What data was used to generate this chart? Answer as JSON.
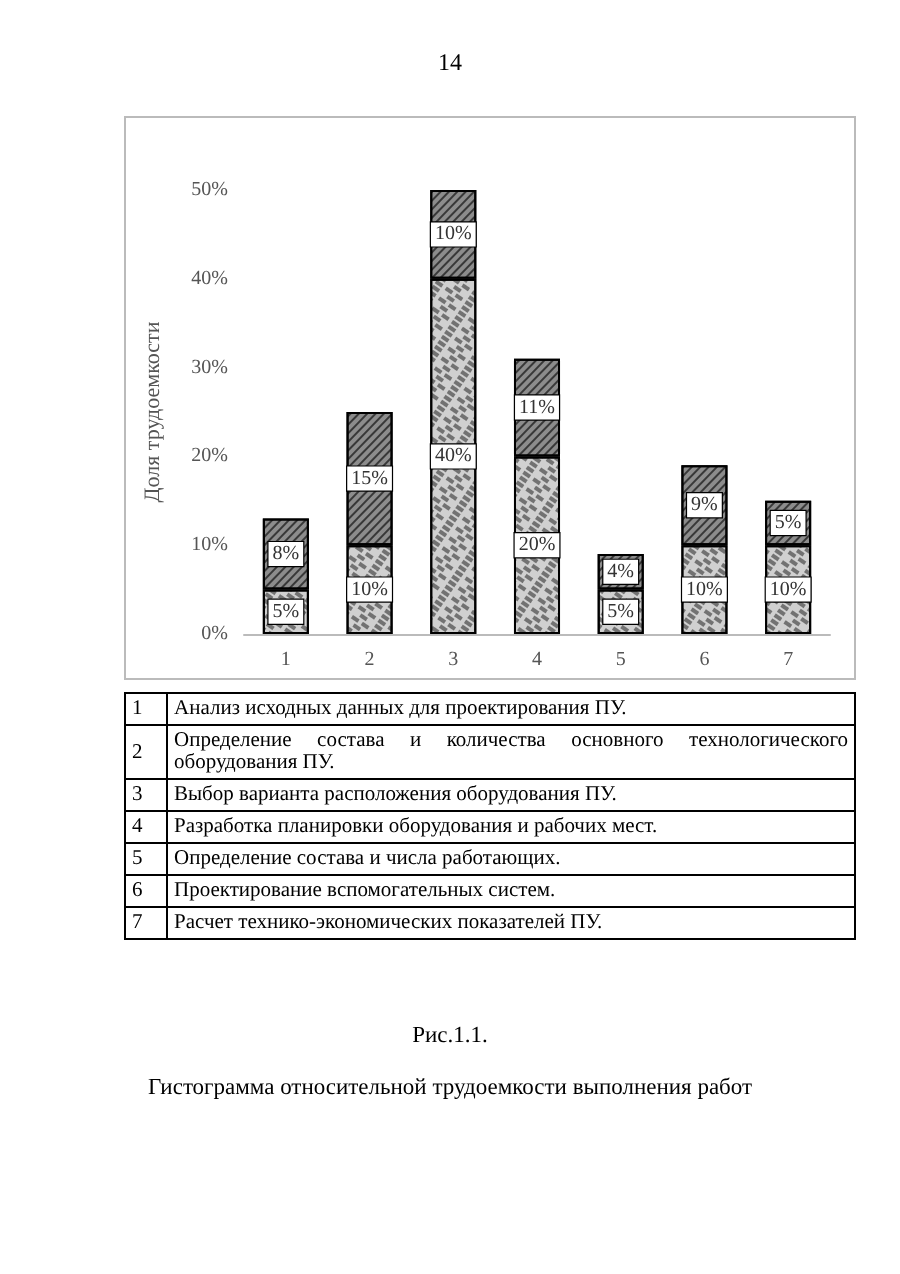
{
  "chart_data": {
    "type": "bar",
    "stacked": true,
    "ylabel": "Доля трудоемкости",
    "categories": [
      "1",
      "2",
      "3",
      "4",
      "5",
      "6",
      "7"
    ],
    "series": [
      {
        "color": "#d0d0d0",
        "values": [
          5,
          10,
          40,
          20,
          5,
          10,
          10
        ],
        "value_labels": [
          "5%",
          "10%",
          "40%",
          "20%",
          "5%",
          "10%",
          "10%"
        ]
      },
      {
        "color": "#8c8c8c",
        "values": [
          8,
          15,
          10,
          11,
          4,
          9,
          5
        ],
        "value_labels": [
          "8%",
          "15%",
          "10%",
          "11%",
          "4%",
          "9%",
          "5%"
        ]
      }
    ],
    "ylim": [
      0,
      50
    ],
    "yticks": [
      {
        "value": 0,
        "label": "0%"
      },
      {
        "value": 10,
        "label": "10%"
      },
      {
        "value": 20,
        "label": "20%"
      },
      {
        "value": 30,
        "label": "30%"
      },
      {
        "value": 40,
        "label": "40%"
      },
      {
        "value": 50,
        "label": "50%"
      }
    ],
    "grid": false,
    "title": "Гистограмма относительной трудоемкости выполнения работ",
    "annotations": [
      "14",
      "Анализ исходных данных для проектирования ПУ.",
      "Определение состава и количества основного технологического оборудования ПУ.",
      "Выбор варианта расположения оборудования ПУ.",
      "Разработка планировки оборудования и рабочих мест.",
      "Определение состава и числа работающих.",
      "Проектирование вспомогательных систем.",
      "Расчет технико-экономических показателей ПУ.",
      "Рис.1.1."
    ]
  }
}
